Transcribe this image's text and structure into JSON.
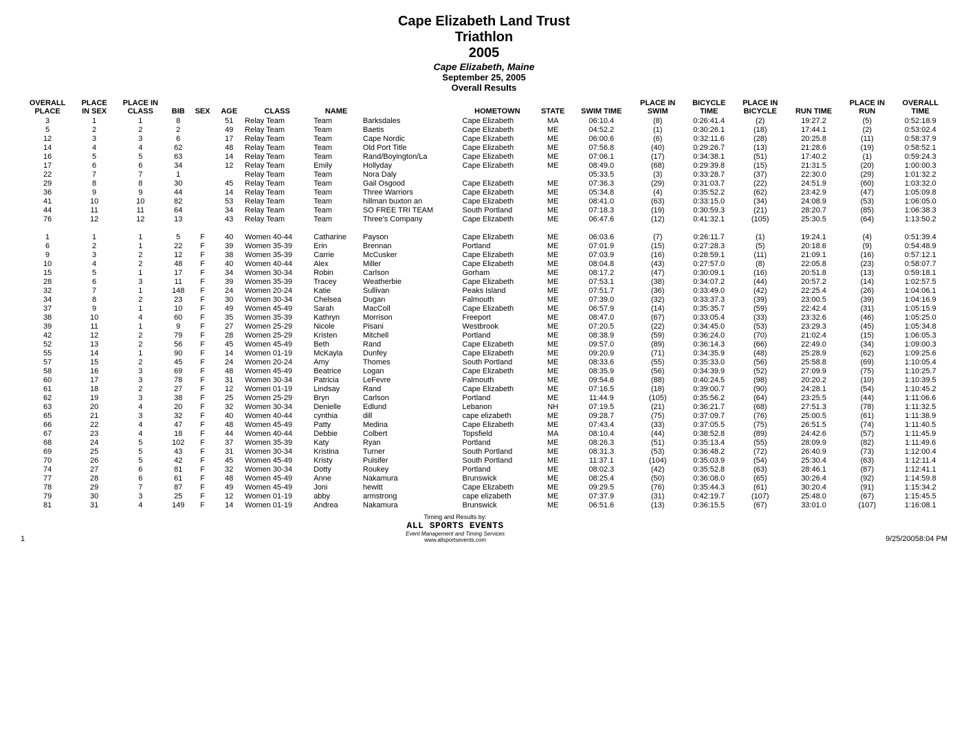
{
  "header": {
    "title1": "Cape Elizabeth Land Trust",
    "title2": "Triathlon",
    "title3": "2005",
    "location": "Cape Elizabeth, Maine",
    "date": "September 25, 2005",
    "subtitle": "Overall Results"
  },
  "columns": [
    "OVERALL\nPLACE",
    "PLACE\nIN SEX",
    "PLACE IN\nCLASS",
    "BIB",
    "SEX",
    "AGE",
    "CLASS",
    "NAME",
    "",
    "HOMETOWN",
    "STATE",
    "SWIM TIME",
    "PLACE IN\nSWIM",
    "BICYCLE\nTIME",
    "PLACE IN\nBICYCLE",
    "RUN TIME",
    "PLACE IN\nRUN",
    "OVERALL\nTIME"
  ],
  "rows": [
    [
      "3",
      "1",
      "1",
      "8",
      "",
      "51",
      "Relay Team",
      "Team",
      "Barksdales",
      "Cape Elizabeth",
      "MA",
      "06:10.4",
      "(8)",
      "0:26:41.4",
      "(2)",
      "19:27.2",
      "(5)",
      "0:52:18.9"
    ],
    [
      "5",
      "2",
      "2",
      "2",
      "",
      "49",
      "Relay Team",
      "Team",
      "Baetis",
      "Cape Elizabeth",
      "ME",
      "04:52.2",
      "(1)",
      "0:30:26.1",
      "(18)",
      "17:44.1",
      "(2)",
      "0:53:02.4"
    ],
    [
      "12",
      "3",
      "3",
      "6",
      "",
      "17",
      "Relay Team",
      "Team",
      "Cape Nordic",
      "Cape Elizabeth",
      "ME",
      "06:00.6",
      "(6)",
      "0:32:11.6",
      "(28)",
      "20:25.8",
      "(11)",
      "0:58:37.9"
    ],
    [
      "14",
      "4",
      "4",
      "62",
      "",
      "48",
      "Relay Team",
      "Team",
      "Old Port Title",
      "Cape Elizabeth",
      "ME",
      "07:56.8",
      "(40)",
      "0:29:26.7",
      "(13)",
      "21:28.6",
      "(19)",
      "0:58:52.1"
    ],
    [
      "16",
      "5",
      "5",
      "63",
      "",
      "14",
      "Relay Team",
      "Team",
      "Rand/Boyington/La",
      "Cape Elizabeth",
      "ME",
      "07:06.1",
      "(17)",
      "0:34:38.1",
      "(51)",
      "17:40.2",
      "(1)",
      "0:59:24.3"
    ],
    [
      "17",
      "6",
      "6",
      "34",
      "",
      "12",
      "Relay Team",
      "Emily",
      "Hollyday",
      "Cape Elizabeth",
      "ME",
      "08:49.0",
      "(68)",
      "0:29:39.8",
      "(15)",
      "21:31.5",
      "(20)",
      "1:00:00.3"
    ],
    [
      "22",
      "7",
      "7",
      "1",
      "",
      "",
      "Relay Team",
      "Team",
      "Nora Daly",
      "",
      "",
      "05:33.5",
      "(3)",
      "0:33:28.7",
      "(37)",
      "22:30.0",
      "(29)",
      "1:01:32.2"
    ],
    [
      "29",
      "8",
      "8",
      "30",
      "",
      "45",
      "Relay Team",
      "Team",
      "Gail Osgood",
      "Cape Elizabeth",
      "ME",
      "07:36.3",
      "(29)",
      "0:31:03.7",
      "(22)",
      "24:51.9",
      "(60)",
      "1:03:32.0"
    ],
    [
      "36",
      "9",
      "9",
      "44",
      "",
      "14",
      "Relay Team",
      "Team",
      "Three Warriors",
      "Cape Elizabeth",
      "ME",
      "05:34.8",
      "(4)",
      "0:35:52.2",
      "(62)",
      "23:42.9",
      "(47)",
      "1:05:09.8"
    ],
    [
      "41",
      "10",
      "10",
      "82",
      "",
      "53",
      "Relay Team",
      "Team",
      "hillman buxton an",
      "Cape Elizabeth",
      "ME",
      "08:41.0",
      "(63)",
      "0:33:15.0",
      "(34)",
      "24:08.9",
      "(53)",
      "1:06:05.0"
    ],
    [
      "44",
      "11",
      "11",
      "64",
      "",
      "34",
      "Relay Team",
      "Team",
      "SO FREE TRI TEAM",
      "South Portland",
      "ME",
      "07:18.3",
      "(19)",
      "0:30:59.3",
      "(21)",
      "28:20.7",
      "(85)",
      "1:06:38.3"
    ],
    [
      "76",
      "12",
      "12",
      "13",
      "",
      "43",
      "Relay Team",
      "Team",
      "Three's Company",
      "Cape Elizabeth",
      "ME",
      "06:47.6",
      "(12)",
      "0:41:32.1",
      "(105)",
      "25:30.5",
      "(64)",
      "1:13:50.2"
    ],
    "gap",
    [
      "1",
      "1",
      "1",
      "5",
      "F",
      "40",
      "Women 40-44",
      "Catharine",
      "Payson",
      "Cape Elizabeth",
      "ME",
      "06:03.6",
      "(7)",
      "0:26:11.7",
      "(1)",
      "19:24.1",
      "(4)",
      "0:51:39.4"
    ],
    [
      "6",
      "2",
      "1",
      "22",
      "F",
      "39",
      "Women 35-39",
      "Erin",
      "Brennan",
      "Portland",
      "ME",
      "07:01.9",
      "(15)",
      "0:27:28.3",
      "(5)",
      "20:18.6",
      "(9)",
      "0:54:48.9"
    ],
    [
      "9",
      "3",
      "2",
      "12",
      "F",
      "38",
      "Women 35-39",
      "Carrie",
      "McCusker",
      "Cape Elizabeth",
      "ME",
      "07:03.9",
      "(16)",
      "0:28:59.1",
      "(11)",
      "21:09.1",
      "(16)",
      "0:57:12.1"
    ],
    [
      "10",
      "4",
      "2",
      "48",
      "F",
      "40",
      "Women 40-44",
      "Alex",
      "Miller",
      "Cape Elizabeth",
      "ME",
      "08:04.8",
      "(43)",
      "0:27:57.0",
      "(8)",
      "22:05.8",
      "(23)",
      "0:58:07.7"
    ],
    [
      "15",
      "5",
      "1",
      "17",
      "F",
      "34",
      "Women 30-34",
      "Robin",
      "Carlson",
      "Gorham",
      "ME",
      "08:17.2",
      "(47)",
      "0:30:09.1",
      "(16)",
      "20:51.8",
      "(13)",
      "0:59:18.1"
    ],
    [
      "28",
      "6",
      "3",
      "11",
      "F",
      "39",
      "Women 35-39",
      "Tracey",
      "Weatherbie",
      "Cape Elizabeth",
      "ME",
      "07:53.1",
      "(38)",
      "0:34:07.2",
      "(44)",
      "20:57.2",
      "(14)",
      "1:02:57.5"
    ],
    [
      "32",
      "7",
      "1",
      "148",
      "F",
      "24",
      "Women 20-24",
      "Katie",
      "Sullivan",
      "Peaks Island",
      "ME",
      "07:51.7",
      "(36)",
      "0:33:49.0",
      "(42)",
      "22:25.4",
      "(26)",
      "1:04:06.1"
    ],
    [
      "34",
      "8",
      "2",
      "23",
      "F",
      "30",
      "Women 30-34",
      "Chelsea",
      "Dugan",
      "Falmouth",
      "ME",
      "07:39.0",
      "(32)",
      "0:33:37.3",
      "(39)",
      "23:00.5",
      "(39)",
      "1:04:16.9"
    ],
    [
      "37",
      "9",
      "1",
      "10",
      "F",
      "49",
      "Women 45-49",
      "Sarah",
      "MacColl",
      "Cape Elizabeth",
      "ME",
      "06:57.9",
      "(14)",
      "0:35:35.7",
      "(59)",
      "22:42.4",
      "(31)",
      "1:05:15.9"
    ],
    [
      "38",
      "10",
      "4",
      "60",
      "F",
      "35",
      "Women 35-39",
      "Kathryn",
      "Morrison",
      "Freeport",
      "ME",
      "08:47.0",
      "(67)",
      "0:33:05.4",
      "(33)",
      "23:32.6",
      "(46)",
      "1:05:25.0"
    ],
    [
      "39",
      "11",
      "1",
      "9",
      "F",
      "27",
      "Women 25-29",
      "Nicole",
      "Pisani",
      "Westbrook",
      "ME",
      "07:20.5",
      "(22)",
      "0:34:45.0",
      "(53)",
      "23:29.3",
      "(45)",
      "1:05:34.8"
    ],
    [
      "42",
      "12",
      "2",
      "79",
      "F",
      "28",
      "Women 25-29",
      "Kristen",
      "Mitchell",
      "Portland",
      "ME",
      "08:38.9",
      "(59)",
      "0:36:24.0",
      "(70)",
      "21:02.4",
      "(15)",
      "1:06:05.3"
    ],
    [
      "52",
      "13",
      "2",
      "56",
      "F",
      "45",
      "Women 45-49",
      "Beth",
      "Rand",
      "Cape Elizabeth",
      "ME",
      "09:57.0",
      "(89)",
      "0:36:14.3",
      "(66)",
      "22:49.0",
      "(34)",
      "1:09:00.3"
    ],
    [
      "55",
      "14",
      "1",
      "90",
      "F",
      "14",
      "Women 01-19",
      "McKayla",
      "Dunfey",
      "Cape Elizabeth",
      "ME",
      "09:20.9",
      "(71)",
      "0:34:35.9",
      "(48)",
      "25:28.9",
      "(62)",
      "1:09:25.6"
    ],
    [
      "57",
      "15",
      "2",
      "45",
      "F",
      "24",
      "Women 20-24",
      "Amy",
      "Thomes",
      "South Portland",
      "ME",
      "08:33.6",
      "(55)",
      "0:35:33.0",
      "(56)",
      "25:58.8",
      "(69)",
      "1:10:05.4"
    ],
    [
      "58",
      "16",
      "3",
      "69",
      "F",
      "48",
      "Women 45-49",
      "Beatrice",
      "Logan",
      "Cape Elizabeth",
      "ME",
      "08:35.9",
      "(56)",
      "0:34:39.9",
      "(52)",
      "27:09.9",
      "(75)",
      "1:10:25.7"
    ],
    [
      "60",
      "17",
      "3",
      "78",
      "F",
      "31",
      "Women 30-34",
      "Patricia",
      "LeFevre",
      "Falmouth",
      "ME",
      "09:54.8",
      "(88)",
      "0:40:24.5",
      "(98)",
      "20:20.2",
      "(10)",
      "1:10:39.5"
    ],
    [
      "61",
      "18",
      "2",
      "27",
      "F",
      "12",
      "Women 01-19",
      "Lindsay",
      "Rand",
      "Cape Elizabeth",
      "ME",
      "07:16.5",
      "(18)",
      "0:39:00.7",
      "(90)",
      "24:28.1",
      "(54)",
      "1:10:45.2"
    ],
    [
      "62",
      "19",
      "3",
      "38",
      "F",
      "25",
      "Women 25-29",
      "Bryn",
      "Carlson",
      "Portland",
      "ME",
      "11:44.9",
      "(105)",
      "0:35:56.2",
      "(64)",
      "23:25.5",
      "(44)",
      "1:11:06.6"
    ],
    [
      "63",
      "20",
      "4",
      "20",
      "F",
      "32",
      "Women 30-34",
      "Denielle",
      "Edlund",
      "Lebanon",
      "NH",
      "07:19.5",
      "(21)",
      "0:36:21.7",
      "(68)",
      "27:51.3",
      "(78)",
      "1:11:32.5"
    ],
    [
      "65",
      "21",
      "3",
      "32",
      "F",
      "40",
      "Women 40-44",
      "cynthia",
      "dill",
      "cape elizabeth",
      "ME",
      "09:28.7",
      "(75)",
      "0:37:09.7",
      "(76)",
      "25:00.5",
      "(61)",
      "1:11:38.9"
    ],
    [
      "66",
      "22",
      "4",
      "47",
      "F",
      "48",
      "Women 45-49",
      "Patty",
      "Medina",
      "Cape Elizabeth",
      "ME",
      "07:43.4",
      "(33)",
      "0:37:05.5",
      "(75)",
      "26:51.5",
      "(74)",
      "1:11:40.5"
    ],
    [
      "67",
      "23",
      "4",
      "18",
      "F",
      "44",
      "Women 40-44",
      "Debbie",
      "Colbert",
      "Topsfield",
      "MA",
      "08:10.4",
      "(44)",
      "0:38:52.8",
      "(89)",
      "24:42.6",
      "(57)",
      "1:11:45.9"
    ],
    [
      "68",
      "24",
      "5",
      "102",
      "F",
      "37",
      "Women 35-39",
      "Katy",
      "Ryan",
      "Portland",
      "ME",
      "08:26.3",
      "(51)",
      "0:35:13.4",
      "(55)",
      "28:09.9",
      "(82)",
      "1:11:49.6"
    ],
    [
      "69",
      "25",
      "5",
      "43",
      "F",
      "31",
      "Women 30-34",
      "Kristina",
      "Turner",
      "South Portland",
      "ME",
      "08:31.3",
      "(53)",
      "0:36:48.2",
      "(72)",
      "26:40.9",
      "(73)",
      "1:12:00.4"
    ],
    [
      "70",
      "26",
      "5",
      "42",
      "F",
      "45",
      "Women 45-49",
      "Kristy",
      "Pulsifer",
      "South Portland",
      "ME",
      "11:37.1",
      "(104)",
      "0:35:03.9",
      "(54)",
      "25:30.4",
      "(63)",
      "1:12:11.4"
    ],
    [
      "74",
      "27",
      "6",
      "81",
      "F",
      "32",
      "Women 30-34",
      "Dotty",
      "Roukey",
      "Portland",
      "ME",
      "08:02.3",
      "(42)",
      "0:35:52.8",
      "(63)",
      "28:46.1",
      "(87)",
      "1:12:41.1"
    ],
    [
      "77",
      "28",
      "6",
      "61",
      "F",
      "48",
      "Women 45-49",
      "Anne",
      "Nakamura",
      "Brunswick",
      "ME",
      "08:25.4",
      "(50)",
      "0:36:08.0",
      "(65)",
      "30:26.4",
      "(92)",
      "1:14:59.8"
    ],
    [
      "78",
      "29",
      "7",
      "87",
      "F",
      "49",
      "Women 45-49",
      "Joni",
      "hewitt",
      "Cape Elizabeth",
      "ME",
      "09:29.5",
      "(76)",
      "0:35:44.3",
      "(61)",
      "30:20.4",
      "(91)",
      "1:15:34.2"
    ],
    [
      "79",
      "30",
      "3",
      "25",
      "F",
      "12",
      "Women 01-19",
      "abby",
      "armstrong",
      "cape elizabeth",
      "ME",
      "07:37.9",
      "(31)",
      "0:42:19.7",
      "(107)",
      "25:48.0",
      "(67)",
      "1:15:45.5"
    ],
    [
      "81",
      "31",
      "4",
      "149",
      "F",
      "14",
      "Women 01-19",
      "Andrea",
      "Nakamura",
      "Brunswick",
      "ME",
      "06:51.6",
      "(13)",
      "0:36:15.5",
      "(67)",
      "33:01.0",
      "(107)",
      "1:16:08.1"
    ]
  ],
  "footer": {
    "page": "1",
    "timing": "Timing and Results by:",
    "company": "ALL SPORTS EVENTS",
    "tagline": "Event Management and Timing Services",
    "url": "www.allsportsevents.com",
    "datetime": "9/25/20058:04 PM"
  },
  "leftCols": [
    6,
    7,
    8,
    9
  ]
}
